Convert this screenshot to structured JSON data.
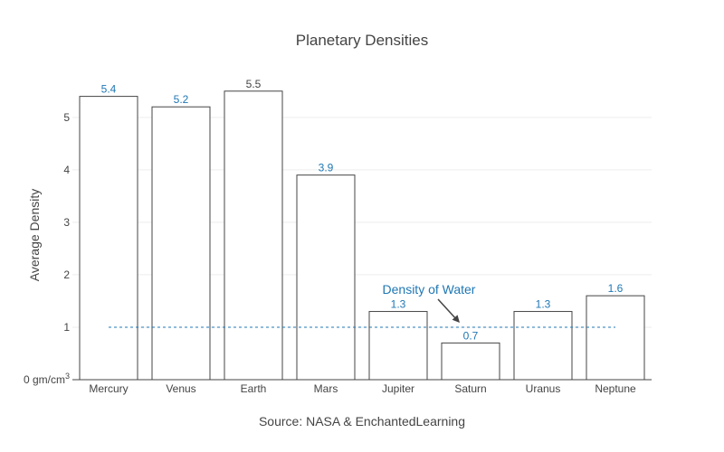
{
  "chart_data": {
    "type": "bar",
    "title": "Planetary Densities",
    "xlabel": "Source: NASA & EnchantedLearning",
    "ylabel": "Average Density",
    "categories": [
      "Mercury",
      "Venus",
      "Earth",
      "Mars",
      "Jupiter",
      "Saturn",
      "Uranus",
      "Neptune"
    ],
    "values": [
      5.4,
      5.2,
      5.5,
      3.9,
      1.3,
      0.7,
      1.3,
      1.6
    ],
    "value_labels": [
      "5.4",
      "5.2",
      "5.5",
      "3.9",
      "1.3",
      "0.7",
      "1.3",
      "1.6"
    ],
    "label_colors": [
      "#1f77b4",
      "#1f77b4",
      "#444444",
      "#1f77b4",
      "#1f77b4",
      "#1f77b4",
      "#1f77b4",
      "#1f77b4"
    ],
    "ylim": [
      0,
      5.6
    ],
    "yticks": [
      0,
      1,
      2,
      3,
      4,
      5
    ],
    "ytick_labels": [
      "0 gm/cm",
      "1",
      "2",
      "3",
      "4",
      "5"
    ],
    "ytick_zero_superscript": "3",
    "grid": true,
    "reference_line": {
      "y": 1,
      "color": "#1f77b4",
      "style": "dashed"
    },
    "annotation": {
      "text": "Density of Water",
      "color": "#1f77b4",
      "points_to": "Saturn"
    }
  }
}
